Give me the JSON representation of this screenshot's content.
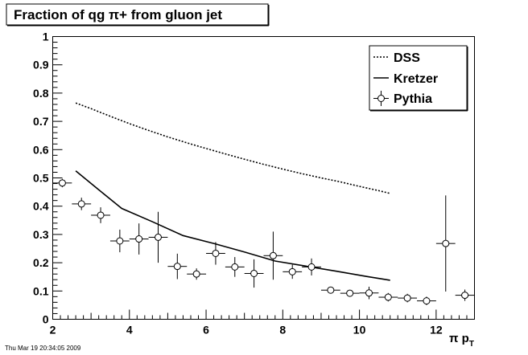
{
  "title": "Fraction of qg π+ from gluon jet",
  "footer": "Thu Mar 19 20:34:05 2009",
  "chart_data": {
    "type": "line",
    "title": "Fraction of qg π+ from gluon jet",
    "xlabel": "π p",
    "xlabel_subscript": "T",
    "ylabel": "",
    "xlim": [
      2,
      13
    ],
    "ylim": [
      0,
      1
    ],
    "x_ticks": [
      2,
      4,
      6,
      8,
      10,
      12
    ],
    "y_ticks": [
      0,
      0.1,
      0.2,
      0.3,
      0.4,
      0.5,
      0.6,
      0.7,
      0.8,
      0.9,
      1
    ],
    "y_tick_labels": [
      "0",
      "0.1",
      "0.2",
      "0.3",
      "0.4",
      "0.5",
      "0.6",
      "0.7",
      "0.8",
      "0.9",
      "1"
    ],
    "grid": false,
    "legend_position": "top-right",
    "series": [
      {
        "name": "DSS",
        "style": "dotted",
        "x": [
          2.6,
          3.0,
          3.5,
          4.0,
          4.5,
          5.0,
          5.5,
          6.0,
          6.5,
          7.0,
          7.5,
          8.0,
          8.5,
          9.0,
          9.5,
          10.0,
          10.5,
          10.8
        ],
        "y": [
          0.765,
          0.745,
          0.718,
          0.692,
          0.668,
          0.645,
          0.624,
          0.604,
          0.585,
          0.566,
          0.548,
          0.531,
          0.515,
          0.5,
          0.486,
          0.47,
          0.455,
          0.445
        ]
      },
      {
        "name": "Kretzer",
        "style": "solid",
        "x": [
          2.6,
          3.2,
          3.8,
          4.6,
          5.4,
          6.2,
          7.0,
          7.8,
          8.6,
          9.4,
          10.2,
          10.8
        ],
        "y": [
          0.525,
          0.458,
          0.392,
          0.345,
          0.296,
          0.268,
          0.238,
          0.206,
          0.188,
          0.17,
          0.151,
          0.138
        ]
      },
      {
        "name": "Pythia",
        "style": "markers-errorbars",
        "points": [
          {
            "x": 2.25,
            "y": 0.482,
            "yerr": 0.015
          },
          {
            "x": 2.75,
            "y": 0.408,
            "yerr": 0.022
          },
          {
            "x": 3.25,
            "y": 0.368,
            "yerr": 0.028
          },
          {
            "x": 3.75,
            "y": 0.277,
            "yerr": 0.04
          },
          {
            "x": 4.25,
            "y": 0.284,
            "yerr": 0.055
          },
          {
            "x": 4.75,
            "y": 0.29,
            "yerr": 0.09
          },
          {
            "x": 5.25,
            "y": 0.187,
            "yerr": 0.045
          },
          {
            "x": 5.75,
            "y": 0.16,
            "yerr": 0.02
          },
          {
            "x": 6.25,
            "y": 0.233,
            "yerr": 0.04
          },
          {
            "x": 6.75,
            "y": 0.185,
            "yerr": 0.035
          },
          {
            "x": 7.25,
            "y": 0.162,
            "yerr": 0.05
          },
          {
            "x": 7.75,
            "y": 0.225,
            "yerr": 0.085
          },
          {
            "x": 8.25,
            "y": 0.168,
            "yerr": 0.025
          },
          {
            "x": 8.75,
            "y": 0.185,
            "yerr": 0.03
          },
          {
            "x": 9.25,
            "y": 0.103,
            "yerr": 0.01
          },
          {
            "x": 9.75,
            "y": 0.092,
            "yerr": 0.01
          },
          {
            "x": 10.25,
            "y": 0.093,
            "yerr": 0.022
          },
          {
            "x": 10.75,
            "y": 0.078,
            "yerr": 0.015
          },
          {
            "x": 11.25,
            "y": 0.075,
            "yerr": 0.015
          },
          {
            "x": 11.75,
            "y": 0.065,
            "yerr": 0.015
          },
          {
            "x": 12.25,
            "y": 0.268,
            "yerr": 0.17
          },
          {
            "x": 12.75,
            "y": 0.085,
            "yerr": 0.02
          }
        ],
        "x_half_width": 0.25
      }
    ],
    "legend": [
      {
        "label": "DSS",
        "style": "dotted"
      },
      {
        "label": "Kretzer",
        "style": "solid"
      },
      {
        "label": "Pythia",
        "style": "marker"
      }
    ]
  }
}
